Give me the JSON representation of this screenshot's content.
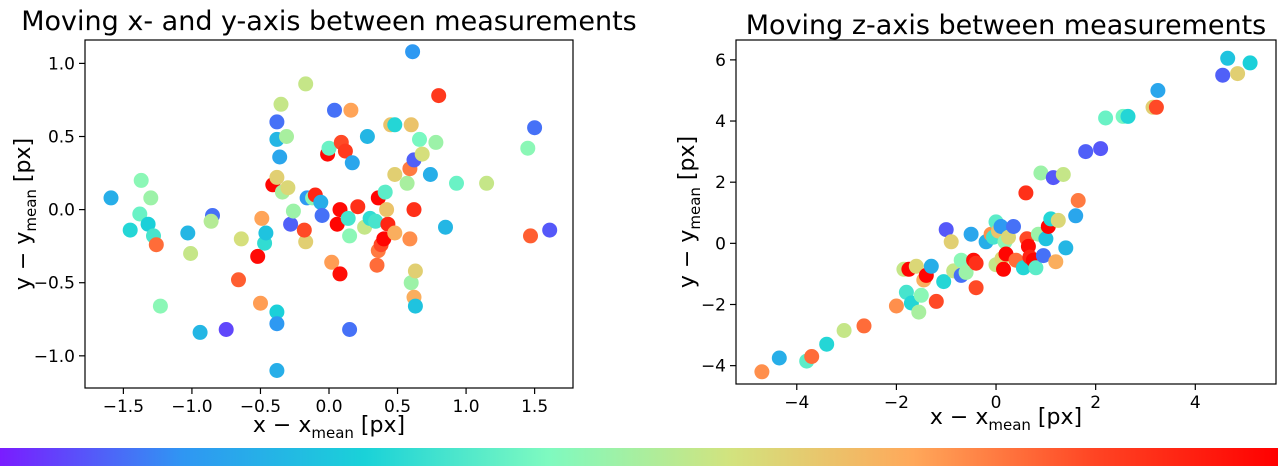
{
  "chart_data": [
    {
      "type": "scatter",
      "title": "Moving x- and y-axis between measurements",
      "xlabel_main": "x − x",
      "xlabel_sub": "mean",
      "xlabel_unit": " [px]",
      "ylabel_main": "y − y",
      "ylabel_sub": "mean",
      "ylabel_unit": " [px]",
      "xlim": [
        -1.78,
        1.78
      ],
      "ylim": [
        -1.22,
        1.16
      ],
      "xticks": [
        -1.5,
        -1.0,
        -0.5,
        0.0,
        0.5,
        1.0,
        1.5
      ],
      "xtick_labels": [
        "−1.5",
        "−1.0",
        "−0.5",
        "0.0",
        "0.5",
        "1.0",
        "1.5"
      ],
      "yticks": [
        -1.0,
        -0.5,
        0.0,
        0.5,
        1.0
      ],
      "ytick_labels": [
        "−1.0",
        "−0.5",
        "0.0",
        "0.5",
        "1.0"
      ],
      "grid": false,
      "points": [
        {
          "x": -1.59,
          "y": 0.08,
          "c": 0.2
        },
        {
          "x": -1.45,
          "y": -0.14,
          "c": 0.3
        },
        {
          "x": -1.38,
          "y": -0.03,
          "c": 0.4
        },
        {
          "x": -1.37,
          "y": 0.2,
          "c": 0.45
        },
        {
          "x": -1.32,
          "y": -0.1,
          "c": 0.28
        },
        {
          "x": -1.3,
          "y": 0.08,
          "c": 0.48
        },
        {
          "x": -1.28,
          "y": -0.18,
          "c": 0.35
        },
        {
          "x": -1.26,
          "y": -0.24,
          "c": 0.8
        },
        {
          "x": -1.23,
          "y": -0.66,
          "c": 0.45
        },
        {
          "x": -1.03,
          "y": -0.16,
          "c": 0.22
        },
        {
          "x": -1.01,
          "y": -0.3,
          "c": 0.55
        },
        {
          "x": -0.94,
          "y": -0.84,
          "c": 0.22
        },
        {
          "x": -0.85,
          "y": -0.04,
          "c": 0.1
        },
        {
          "x": -0.86,
          "y": -0.08,
          "c": 0.52
        },
        {
          "x": -0.75,
          "y": -0.82,
          "c": 0.05
        },
        {
          "x": -0.64,
          "y": -0.2,
          "c": 0.58
        },
        {
          "x": -0.66,
          "y": -0.48,
          "c": 0.82
        },
        {
          "x": -0.52,
          "y": -0.32,
          "c": 0.98
        },
        {
          "x": -0.5,
          "y": -0.64,
          "c": 0.73
        },
        {
          "x": -0.49,
          "y": -0.06,
          "c": 0.72
        },
        {
          "x": -0.47,
          "y": -0.23,
          "c": 0.32
        },
        {
          "x": -0.46,
          "y": -0.16,
          "c": 0.25
        },
        {
          "x": -0.41,
          "y": 0.17,
          "c": 0.99
        },
        {
          "x": -0.38,
          "y": 0.6,
          "c": 0.1
        },
        {
          "x": -0.38,
          "y": 0.48,
          "c": 0.22
        },
        {
          "x": -0.36,
          "y": 0.36,
          "c": 0.18
        },
        {
          "x": -0.35,
          "y": 0.72,
          "c": 0.55
        },
        {
          "x": -0.38,
          "y": -0.7,
          "c": 0.28
        },
        {
          "x": -0.38,
          "y": -0.78,
          "c": 0.15
        },
        {
          "x": -0.38,
          "y": -1.1,
          "c": 0.2
        },
        {
          "x": -0.38,
          "y": 0.22,
          "c": 0.62
        },
        {
          "x": -0.34,
          "y": 0.12,
          "c": 0.5
        },
        {
          "x": -0.31,
          "y": 0.5,
          "c": 0.5
        },
        {
          "x": -0.3,
          "y": 0.15,
          "c": 0.6
        },
        {
          "x": -0.28,
          "y": -0.1,
          "c": 0.08
        },
        {
          "x": -0.26,
          "y": -0.01,
          "c": 0.48
        },
        {
          "x": -0.17,
          "y": 0.86,
          "c": 0.55
        },
        {
          "x": -0.16,
          "y": 0.08,
          "c": 0.15
        },
        {
          "x": -0.17,
          "y": -0.22,
          "c": 0.62
        },
        {
          "x": -0.18,
          "y": -0.14,
          "c": 0.85
        },
        {
          "x": -0.12,
          "y": 0.08,
          "c": 0.45
        },
        {
          "x": -0.1,
          "y": 0.1,
          "c": 0.92
        },
        {
          "x": -0.06,
          "y": 0.05,
          "c": 0.2
        },
        {
          "x": -0.05,
          "y": -0.04,
          "c": 0.1
        },
        {
          "x": -0.01,
          "y": 0.38,
          "c": 0.98
        },
        {
          "x": 0.0,
          "y": 0.42,
          "c": 0.4
        },
        {
          "x": 0.04,
          "y": 0.68,
          "c": 0.1
        },
        {
          "x": 0.02,
          "y": -0.36,
          "c": 0.73
        },
        {
          "x": 0.06,
          "y": -0.1,
          "c": 0.99
        },
        {
          "x": 0.08,
          "y": 0.0,
          "c": 0.98
        },
        {
          "x": 0.08,
          "y": -0.44,
          "c": 0.97
        },
        {
          "x": 0.09,
          "y": 0.46,
          "c": 0.85
        },
        {
          "x": 0.12,
          "y": 0.4,
          "c": 0.88
        },
        {
          "x": 0.14,
          "y": -0.06,
          "c": 0.35
        },
        {
          "x": 0.15,
          "y": -0.82,
          "c": 0.1
        },
        {
          "x": 0.16,
          "y": 0.68,
          "c": 0.72
        },
        {
          "x": 0.17,
          "y": 0.32,
          "c": 0.18
        },
        {
          "x": 0.15,
          "y": -0.18,
          "c": 0.45
        },
        {
          "x": 0.21,
          "y": 0.02,
          "c": 0.9
        },
        {
          "x": 0.26,
          "y": -0.12,
          "c": 0.55
        },
        {
          "x": 0.28,
          "y": 0.5,
          "c": 0.22
        },
        {
          "x": 0.3,
          "y": -0.06,
          "c": 0.32
        },
        {
          "x": 0.34,
          "y": -0.08,
          "c": 0.35
        },
        {
          "x": 0.35,
          "y": -0.38,
          "c": 0.8
        },
        {
          "x": 0.36,
          "y": 0.08,
          "c": 0.99
        },
        {
          "x": 0.36,
          "y": -0.28,
          "c": 0.78
        },
        {
          "x": 0.38,
          "y": -0.24,
          "c": 0.85
        },
        {
          "x": 0.4,
          "y": -0.2,
          "c": 0.99
        },
        {
          "x": 0.41,
          "y": 0.12,
          "c": 0.38
        },
        {
          "x": 0.43,
          "y": -0.1,
          "c": 0.92
        },
        {
          "x": 0.42,
          "y": 0.0,
          "c": 0.65
        },
        {
          "x": 0.45,
          "y": 0.58,
          "c": 0.65
        },
        {
          "x": 0.48,
          "y": 0.24,
          "c": 0.62
        },
        {
          "x": 0.48,
          "y": -0.16,
          "c": 0.7
        },
        {
          "x": 0.48,
          "y": 0.58,
          "c": 0.3
        },
        {
          "x": 0.57,
          "y": 0.18,
          "c": 0.5
        },
        {
          "x": 0.59,
          "y": -0.2,
          "c": 0.75
        },
        {
          "x": 0.59,
          "y": 0.28,
          "c": 0.78
        },
        {
          "x": 0.6,
          "y": -0.5,
          "c": 0.48
        },
        {
          "x": 0.6,
          "y": 0.58,
          "c": 0.65
        },
        {
          "x": 0.61,
          "y": 1.08,
          "c": 0.15
        },
        {
          "x": 0.62,
          "y": 0.34,
          "c": 0.08
        },
        {
          "x": 0.62,
          "y": -0.6,
          "c": 0.7
        },
        {
          "x": 0.63,
          "y": -0.66,
          "c": 0.25
        },
        {
          "x": 0.63,
          "y": -0.42,
          "c": 0.62
        },
        {
          "x": 0.62,
          "y": 0.0,
          "c": 0.9
        },
        {
          "x": 0.66,
          "y": 0.48,
          "c": 0.42
        },
        {
          "x": 0.68,
          "y": 0.38,
          "c": 0.58
        },
        {
          "x": 0.74,
          "y": 0.24,
          "c": 0.2
        },
        {
          "x": 0.78,
          "y": 0.46,
          "c": 0.48
        },
        {
          "x": 0.8,
          "y": 0.78,
          "c": 0.88
        },
        {
          "x": 0.85,
          "y": -0.12,
          "c": 0.22
        },
        {
          "x": 0.93,
          "y": 0.18,
          "c": 0.4
        },
        {
          "x": 1.15,
          "y": 0.18,
          "c": 0.55
        },
        {
          "x": 1.45,
          "y": 0.42,
          "c": 0.45
        },
        {
          "x": 1.47,
          "y": -0.18,
          "c": 0.82
        },
        {
          "x": 1.5,
          "y": 0.56,
          "c": 0.1
        },
        {
          "x": 1.61,
          "y": -0.14,
          "c": 0.07
        }
      ]
    },
    {
      "type": "scatter",
      "title": "Moving z-axis between measurements",
      "xlabel_main": "x − x",
      "xlabel_sub": "mean",
      "xlabel_unit": " [px]",
      "ylabel_main": "y − y",
      "ylabel_sub": "mean",
      "ylabel_unit": " [px]",
      "xlim": [
        -5.22,
        5.62
      ],
      "ylim": [
        -4.6,
        6.65
      ],
      "xticks": [
        -4,
        -2,
        0,
        2,
        4
      ],
      "xtick_labels": [
        "−4",
        "−2",
        "0",
        "2",
        "4"
      ],
      "yticks": [
        -4,
        -2,
        0,
        2,
        4,
        6
      ],
      "ytick_labels": [
        "−4",
        "−2",
        "0",
        "2",
        "4",
        "6"
      ],
      "grid": false,
      "points": [
        {
          "x": -4.7,
          "y": -4.2,
          "c": 0.75
        },
        {
          "x": -4.35,
          "y": -3.75,
          "c": 0.2
        },
        {
          "x": -3.8,
          "y": -3.85,
          "c": 0.38
        },
        {
          "x": -3.7,
          "y": -3.7,
          "c": 0.8
        },
        {
          "x": -3.4,
          "y": -3.3,
          "c": 0.3
        },
        {
          "x": -3.05,
          "y": -2.85,
          "c": 0.55
        },
        {
          "x": -2.65,
          "y": -2.7,
          "c": 0.8
        },
        {
          "x": -2.0,
          "y": -2.05,
          "c": 0.75
        },
        {
          "x": -1.85,
          "y": -0.85,
          "c": 0.55
        },
        {
          "x": -1.75,
          "y": -0.85,
          "c": 0.99
        },
        {
          "x": -1.8,
          "y": -1.6,
          "c": 0.35
        },
        {
          "x": -1.7,
          "y": -1.95,
          "c": 0.3
        },
        {
          "x": -1.6,
          "y": -0.75,
          "c": 0.6
        },
        {
          "x": -1.55,
          "y": -2.25,
          "c": 0.5
        },
        {
          "x": -1.5,
          "y": -1.7,
          "c": 0.45
        },
        {
          "x": -1.45,
          "y": -1.2,
          "c": 0.7
        },
        {
          "x": -1.4,
          "y": -1.05,
          "c": 0.99
        },
        {
          "x": -1.3,
          "y": -0.75,
          "c": 0.2
        },
        {
          "x": -1.2,
          "y": -1.9,
          "c": 0.85
        },
        {
          "x": -1.05,
          "y": -1.25,
          "c": 0.3
        },
        {
          "x": -1.0,
          "y": 0.45,
          "c": 0.07
        },
        {
          "x": -0.9,
          "y": 0.05,
          "c": 0.62
        },
        {
          "x": -0.85,
          "y": -0.9,
          "c": 0.55
        },
        {
          "x": -0.7,
          "y": -0.55,
          "c": 0.45
        },
        {
          "x": -0.7,
          "y": -1.05,
          "c": 0.1
        },
        {
          "x": -0.6,
          "y": -0.95,
          "c": 0.48
        },
        {
          "x": -0.5,
          "y": 0.3,
          "c": 0.18
        },
        {
          "x": -0.45,
          "y": -0.55,
          "c": 0.97
        },
        {
          "x": -0.4,
          "y": -0.65,
          "c": 0.9
        },
        {
          "x": -0.4,
          "y": -1.45,
          "c": 0.85
        },
        {
          "x": -0.2,
          "y": 0.05,
          "c": 0.2
        },
        {
          "x": -0.1,
          "y": 0.3,
          "c": 0.75
        },
        {
          "x": -0.05,
          "y": 0.2,
          "c": 0.35
        },
        {
          "x": 0.0,
          "y": 0.7,
          "c": 0.38
        },
        {
          "x": 0.0,
          "y": -0.7,
          "c": 0.55
        },
        {
          "x": 0.05,
          "y": 0.4,
          "c": 0.65
        },
        {
          "x": 0.1,
          "y": 0.55,
          "c": 0.15
        },
        {
          "x": 0.12,
          "y": -0.5,
          "c": 0.6
        },
        {
          "x": 0.15,
          "y": -0.85,
          "c": 0.99
        },
        {
          "x": 0.18,
          "y": 0.05,
          "c": 0.45
        },
        {
          "x": 0.2,
          "y": -0.35,
          "c": 0.99
        },
        {
          "x": 0.25,
          "y": 0.2,
          "c": 0.6
        },
        {
          "x": 0.35,
          "y": 0.55,
          "c": 0.1
        },
        {
          "x": 0.4,
          "y": -0.55,
          "c": 0.8
        },
        {
          "x": 0.55,
          "y": -0.8,
          "c": 0.3
        },
        {
          "x": 0.6,
          "y": 1.65,
          "c": 0.9
        },
        {
          "x": 0.62,
          "y": 0.15,
          "c": 0.85
        },
        {
          "x": 0.65,
          "y": -0.1,
          "c": 0.98
        },
        {
          "x": 0.68,
          "y": -0.45,
          "c": 0.92
        },
        {
          "x": 0.75,
          "y": -0.55,
          "c": 0.99
        },
        {
          "x": 0.8,
          "y": -0.8,
          "c": 0.38
        },
        {
          "x": 0.85,
          "y": 0.3,
          "c": 0.48
        },
        {
          "x": 0.9,
          "y": 2.3,
          "c": 0.48
        },
        {
          "x": 0.95,
          "y": -0.4,
          "c": 0.1
        },
        {
          "x": 1.0,
          "y": 0.15,
          "c": 0.25
        },
        {
          "x": 1.05,
          "y": 0.55,
          "c": 0.99
        },
        {
          "x": 1.1,
          "y": 0.8,
          "c": 0.3
        },
        {
          "x": 1.15,
          "y": 2.15,
          "c": 0.07
        },
        {
          "x": 1.2,
          "y": -0.6,
          "c": 0.7
        },
        {
          "x": 1.25,
          "y": 0.75,
          "c": 0.6
        },
        {
          "x": 1.35,
          "y": 2.25,
          "c": 0.55
        },
        {
          "x": 1.4,
          "y": -0.15,
          "c": 0.22
        },
        {
          "x": 1.6,
          "y": 0.9,
          "c": 0.18
        },
        {
          "x": 1.65,
          "y": 1.4,
          "c": 0.78
        },
        {
          "x": 1.8,
          "y": 3.0,
          "c": 0.08
        },
        {
          "x": 2.1,
          "y": 3.1,
          "c": 0.07
        },
        {
          "x": 2.2,
          "y": 4.1,
          "c": 0.4
        },
        {
          "x": 2.55,
          "y": 4.15,
          "c": 0.42
        },
        {
          "x": 2.65,
          "y": 4.15,
          "c": 0.3
        },
        {
          "x": 3.15,
          "y": 4.45,
          "c": 0.62
        },
        {
          "x": 3.22,
          "y": 4.45,
          "c": 0.85
        },
        {
          "x": 3.25,
          "y": 5.0,
          "c": 0.18
        },
        {
          "x": 4.55,
          "y": 5.5,
          "c": 0.08
        },
        {
          "x": 4.65,
          "y": 6.05,
          "c": 0.25
        },
        {
          "x": 4.85,
          "y": 5.55,
          "c": 0.62
        },
        {
          "x": 5.1,
          "y": 5.9,
          "c": 0.28
        }
      ]
    }
  ],
  "colormap": [
    "#7a1cff",
    "#2f96f3",
    "#1ad2d8",
    "#7efac0",
    "#d2e37e",
    "#ffa85a",
    "#ff4423",
    "#ff0000"
  ]
}
